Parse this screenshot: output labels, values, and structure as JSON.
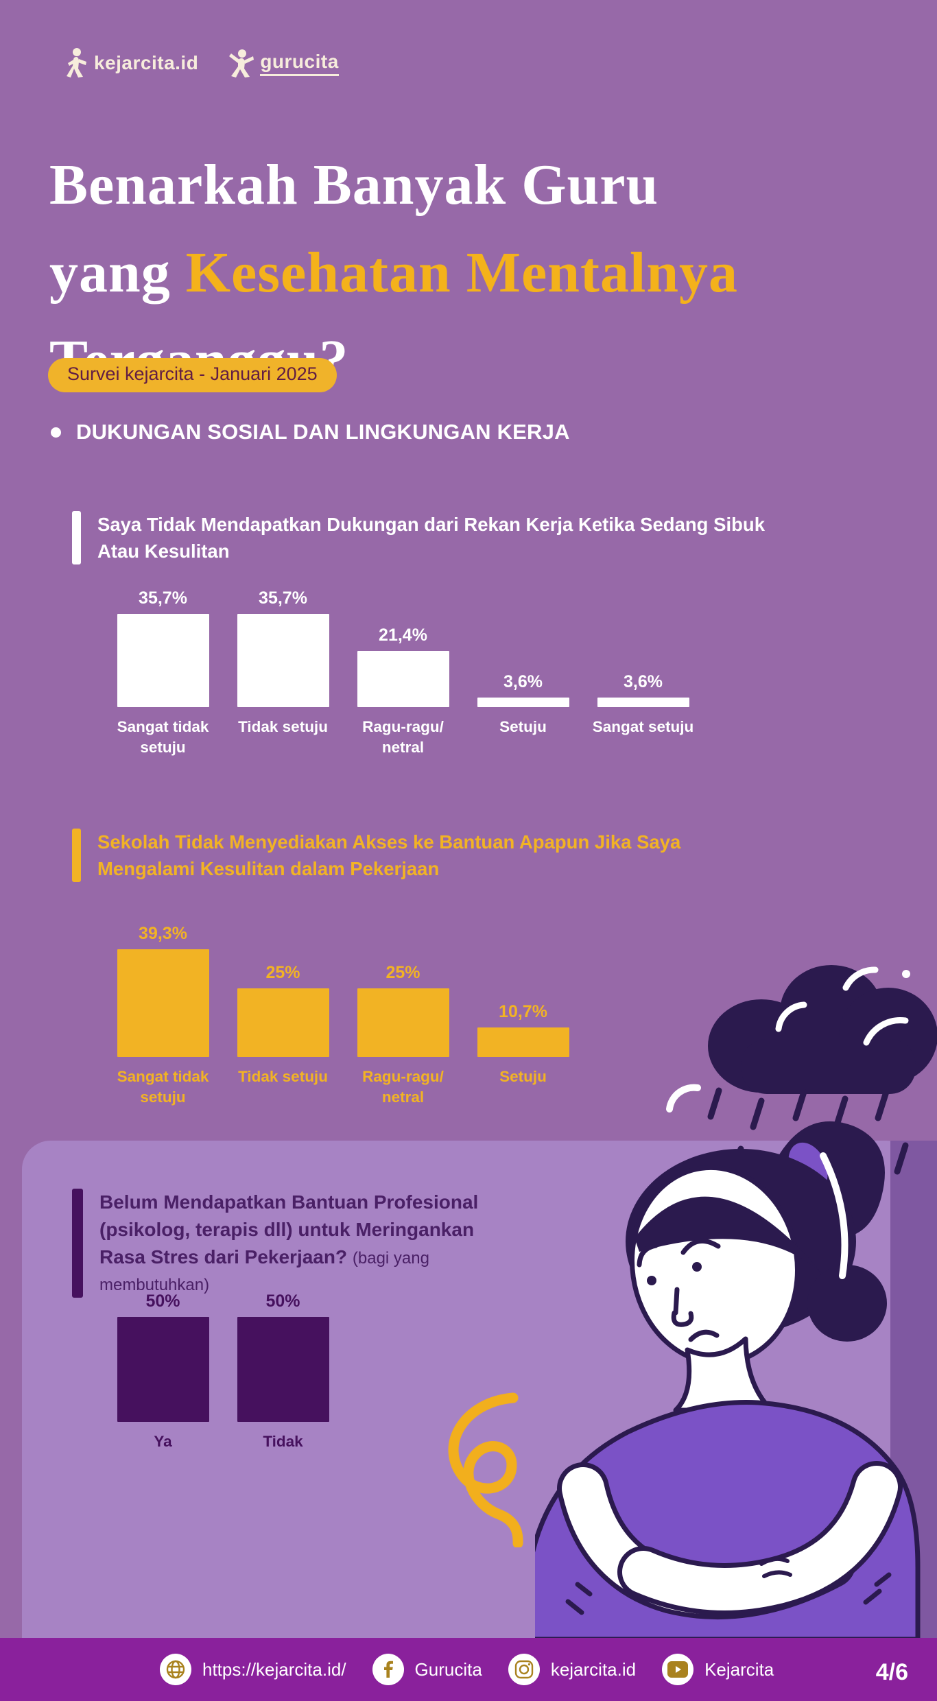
{
  "header": {
    "logo_kejarcita": "kejarcita.id",
    "logo_gurucita": "gurucita"
  },
  "title": {
    "line1": "Benarkah Banyak Guru",
    "line2_white": "yang ",
    "line2_highlight": "Kesehatan Mentalnya",
    "line3": "Terganggu?",
    "highlight_color": "#F4B21B"
  },
  "badge": {
    "label": "Survei kejarcita - Januari 2025",
    "bg": "#F0B32A",
    "text_color": "#611D44"
  },
  "section": {
    "heading": "DUKUNGAN SOSIAL DAN LINGKUNGAN KERJA"
  },
  "chart_data": [
    {
      "type": "bar",
      "title": "Saya Tidak Mendapatkan Dukungan dari Rekan Kerja Ketika Sedang Sibuk Atau Kesulitan",
      "categories": [
        "Sangat tidak setuju",
        "Tidak setuju",
        "Ragu-ragu/ netral",
        "Setuju",
        "Sangat setuju"
      ],
      "values": [
        35.7,
        35.7,
        21.4,
        3.6,
        3.6
      ],
      "value_labels": [
        "35,7%",
        "35,7%",
        "21,4%",
        "3,6%",
        "3,6%"
      ],
      "bar_color": "#FFFFFF",
      "text_color": "#FFFFFF",
      "ylim": [
        0,
        40
      ],
      "grid": false,
      "legend": "none",
      "value_label_position": "above-bar"
    },
    {
      "type": "bar",
      "title": "Sekolah Tidak Menyediakan Akses ke Bantuan Apapun Jika Saya Mengalami Kesulitan dalam Pekerjaan",
      "categories": [
        "Sangat tidak setuju",
        "Tidak setuju",
        "Ragu-ragu/ netral",
        "Setuju"
      ],
      "values": [
        39.3,
        25,
        25,
        10.7
      ],
      "value_labels": [
        "39,3%",
        "25%",
        "25%",
        "10,7%"
      ],
      "bar_color": "#F2B324",
      "text_color": "#F2B324",
      "ylim": [
        0,
        40
      ],
      "grid": false,
      "legend": "none",
      "value_label_position": "above-bar"
    },
    {
      "type": "bar",
      "title": "Belum Mendapatkan Bantuan Profesional (psikolog, terapis dll) untuk Meringankan Rasa Stres dari Pekerjaan?",
      "subtitle": "(bagi yang membutuhkan)",
      "categories": [
        "Ya",
        "Tidak"
      ],
      "values": [
        50,
        50
      ],
      "value_labels": [
        "50%",
        "50%"
      ],
      "bar_color": "#46115E",
      "text_color": "#46115E",
      "ylim": [
        0,
        50
      ],
      "grid": false,
      "legend": "none",
      "value_label_position": "above-bar"
    }
  ],
  "illustration": {
    "description": "stressed teacher with rain cloud",
    "cloud_color": "#2B1A4E",
    "shirt_color": "#7B52C6",
    "squiggle_color": "#F2AF1D"
  },
  "footer": {
    "bg": "#8A219C",
    "items": [
      {
        "icon": "globe-icon",
        "label": "https://kejarcita.id/"
      },
      {
        "icon": "facebook-icon",
        "label": "Gurucita"
      },
      {
        "icon": "instagram-icon",
        "label": "kejarcita.id"
      },
      {
        "icon": "youtube-icon",
        "label": "Kejarcita"
      }
    ],
    "page_number": "4/6"
  }
}
